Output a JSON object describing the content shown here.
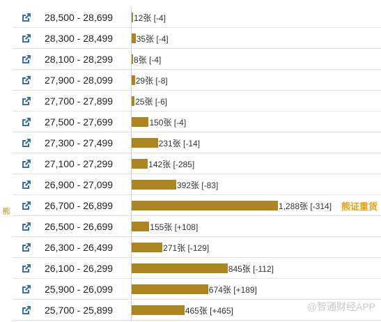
{
  "side_label": "熊",
  "bull_bear_tag": "熊证重货",
  "watermark": "@智通财经APP",
  "colors": {
    "bar": "#ab8521",
    "tag": "#e8a010",
    "icon": "#3a6ea5"
  },
  "icon_name": "external-link-icon",
  "chart_data": {
    "type": "bar",
    "orientation": "horizontal",
    "unit": "张",
    "categories": [
      "28,500 - 28,699",
      "28,300 - 28,499",
      "28,100 - 28,299",
      "27,900 - 28,099",
      "27,700 - 27,899",
      "27,500 - 27,699",
      "27,300 - 27,499",
      "27,100 - 27,299",
      "26,900 - 27,099",
      "26,700 - 26,899",
      "26,500 - 26,699",
      "26,300 - 26,499",
      "26,100 - 26,299",
      "25,900 - 26,099",
      "25,700 - 25,899"
    ],
    "values": [
      12,
      35,
      8,
      29,
      25,
      150,
      231,
      142,
      392,
      1288,
      155,
      271,
      845,
      674,
      465
    ],
    "labels": [
      "12张 [-4]",
      "35张 [-4]",
      "8张 [-4]",
      "29张 [-8]",
      "25张 [-6]",
      "150张 [-4]",
      "231张 [-14]",
      "142张 [-285]",
      "392张 [-83]",
      "1,288张 [-314]",
      "155张 [+108]",
      "271张 [-129]",
      "845张 [-112]",
      "674张 [+189]",
      "465张 [+465]"
    ],
    "changes": [
      -4,
      -4,
      -4,
      -8,
      -6,
      -4,
      -14,
      -285,
      -83,
      -314,
      108,
      -129,
      -112,
      189,
      465
    ],
    "xlim": [
      0,
      1288
    ],
    "highlight_index": 9
  }
}
